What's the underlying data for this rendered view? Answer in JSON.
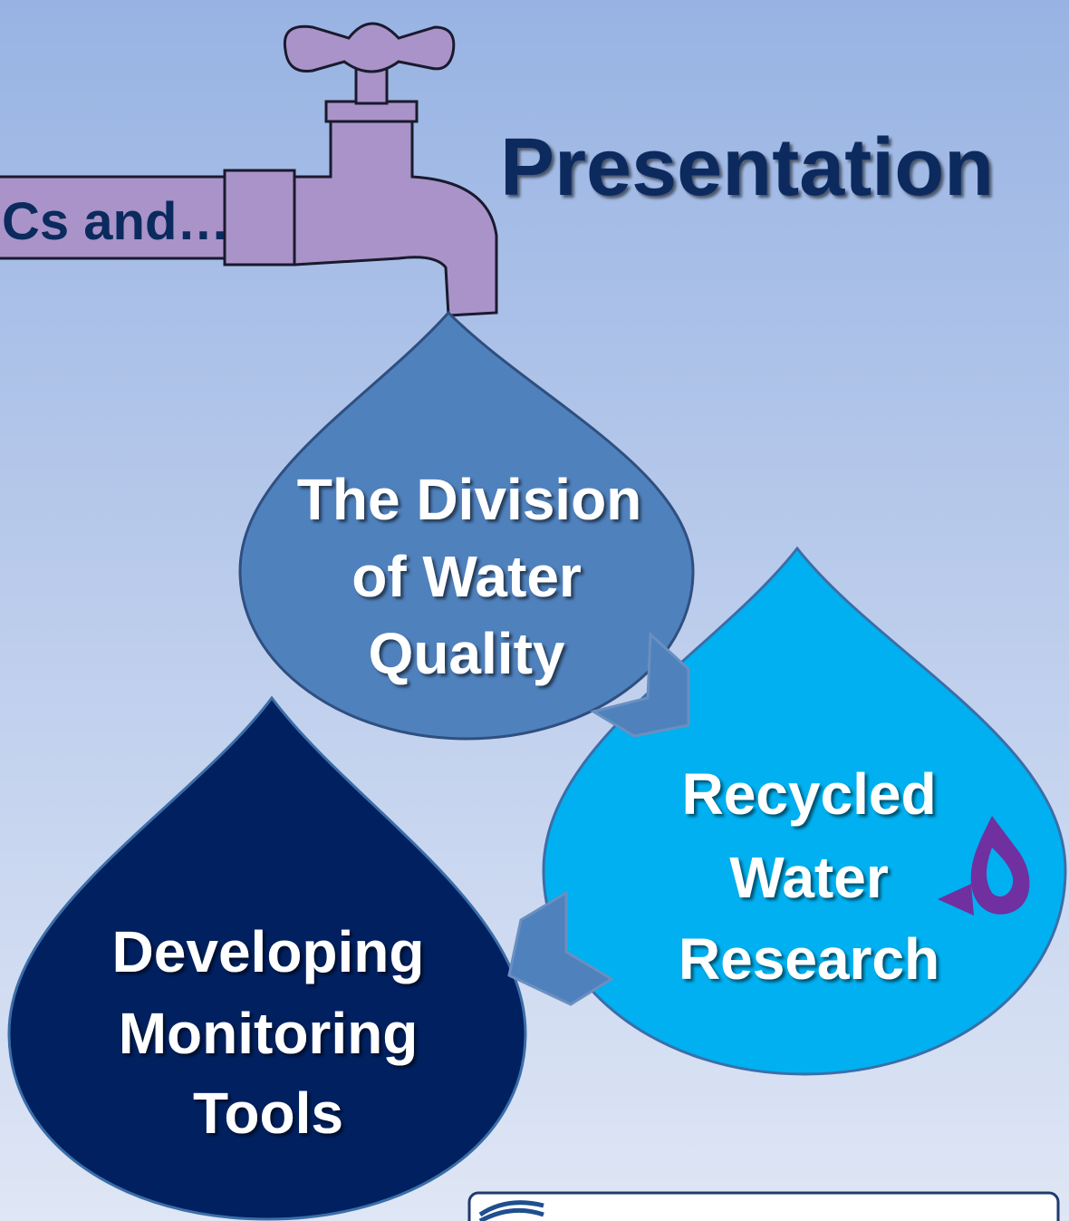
{
  "title": "Presentation",
  "pipe_label": "Cs and…",
  "drops": [
    {
      "lines": [
        "The Division",
        "of Water",
        "Quality"
      ]
    },
    {
      "lines": [
        "Recycled",
        "Water",
        "Research"
      ]
    },
    {
      "lines": [
        "Developing",
        "Monitoring",
        "Tools"
      ]
    }
  ]
}
